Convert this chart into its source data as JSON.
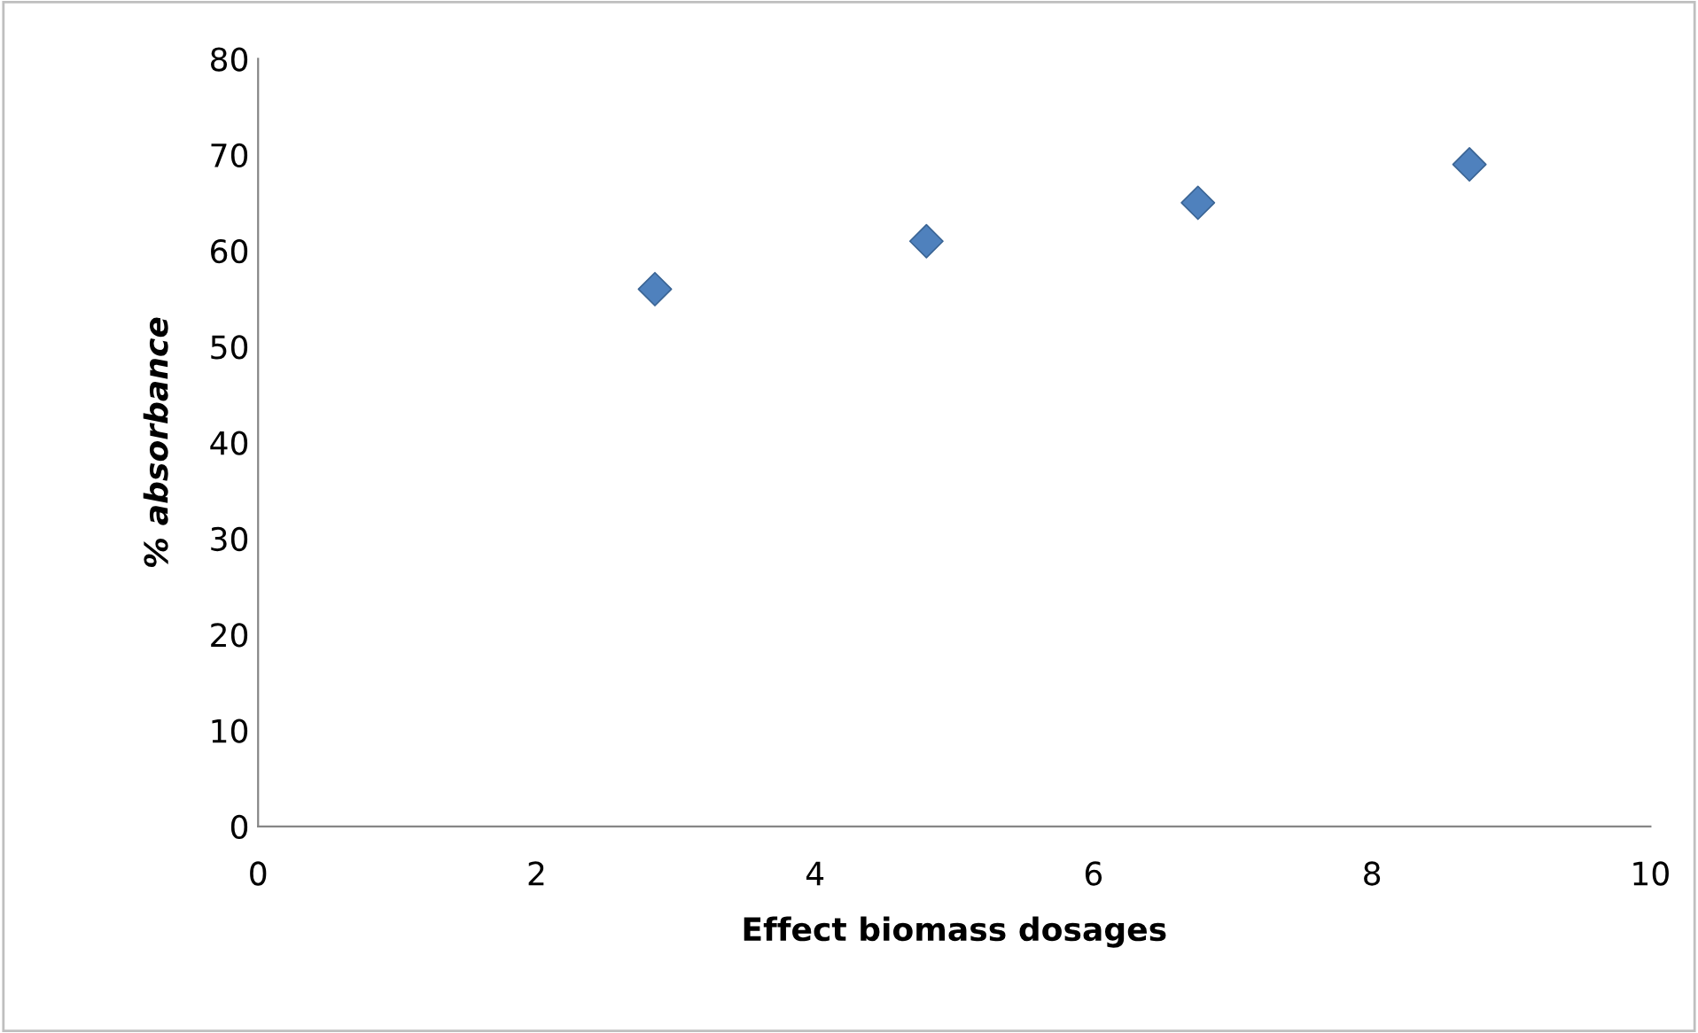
{
  "chart_data": {
    "type": "scatter",
    "xlabel": "Effect biomass dosages",
    "ylabel": "% absorbance",
    "x": [
      2.85,
      4.8,
      6.75,
      8.7
    ],
    "series": [
      {
        "color": "#4f81bd",
        "values": [
          56,
          61,
          65,
          69
        ]
      }
    ],
    "xlim": [
      0,
      10
    ],
    "xticks": [
      0,
      2,
      4,
      6,
      8,
      10
    ],
    "ylim": [
      0,
      80
    ],
    "yticks": [
      0,
      10,
      20,
      30,
      40,
      50,
      60,
      70,
      80
    ],
    "marker": "diamond",
    "grid": false,
    "legend": false
  }
}
